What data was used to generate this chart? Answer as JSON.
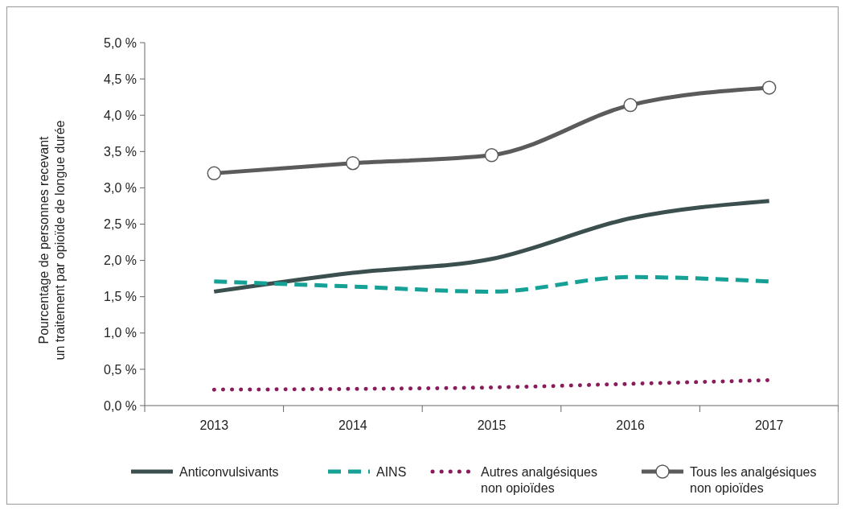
{
  "chart_data": {
    "type": "line",
    "ylabel": "Pourcentage de personnes recevant un traitement par opioïde de longue durée",
    "categories": [
      "2013",
      "2014",
      "2015",
      "2016",
      "2017"
    ],
    "series": [
      {
        "name": "Anticonvulsivants",
        "color": "#3b4f4f",
        "values": [
          1.57,
          1.83,
          2.02,
          2.58,
          2.82
        ],
        "line_style": "solid",
        "marker": "none"
      },
      {
        "name": "AINS",
        "color": "#16a196",
        "values": [
          1.71,
          1.64,
          1.57,
          1.77,
          1.71
        ],
        "line_style": "dashed",
        "marker": "none"
      },
      {
        "name": "Autres analgésiques non opioïdes",
        "color": "#8a1c5c",
        "values": [
          0.22,
          0.23,
          0.25,
          0.3,
          0.35
        ],
        "line_style": "dotted",
        "marker": "none"
      },
      {
        "name": "Tous les analgésiques non opioïdes",
        "color": "#5b5b5b",
        "values": [
          3.2,
          3.34,
          3.45,
          4.14,
          4.38
        ],
        "line_style": "solid",
        "marker": "circle"
      }
    ],
    "ylim": [
      0,
      5
    ],
    "yticks": [
      {
        "value": 0,
        "label": "0,0 %"
      },
      {
        "value": 0.5,
        "label": "0,5 %"
      },
      {
        "value": 1,
        "label": "1,0 %"
      },
      {
        "value": 1.5,
        "label": "1,5 %"
      },
      {
        "value": 2,
        "label": "2,0 %"
      },
      {
        "value": 2.5,
        "label": "2,5 %"
      },
      {
        "value": 3,
        "label": "3,0 %"
      },
      {
        "value": 3.5,
        "label": "3,5 %"
      },
      {
        "value": 4,
        "label": "4,0 %"
      },
      {
        "value": 4.5,
        "label": "4,5 %"
      },
      {
        "value": 5,
        "label": "5,0 %"
      }
    ],
    "grid": false,
    "legend": "bottom"
  }
}
